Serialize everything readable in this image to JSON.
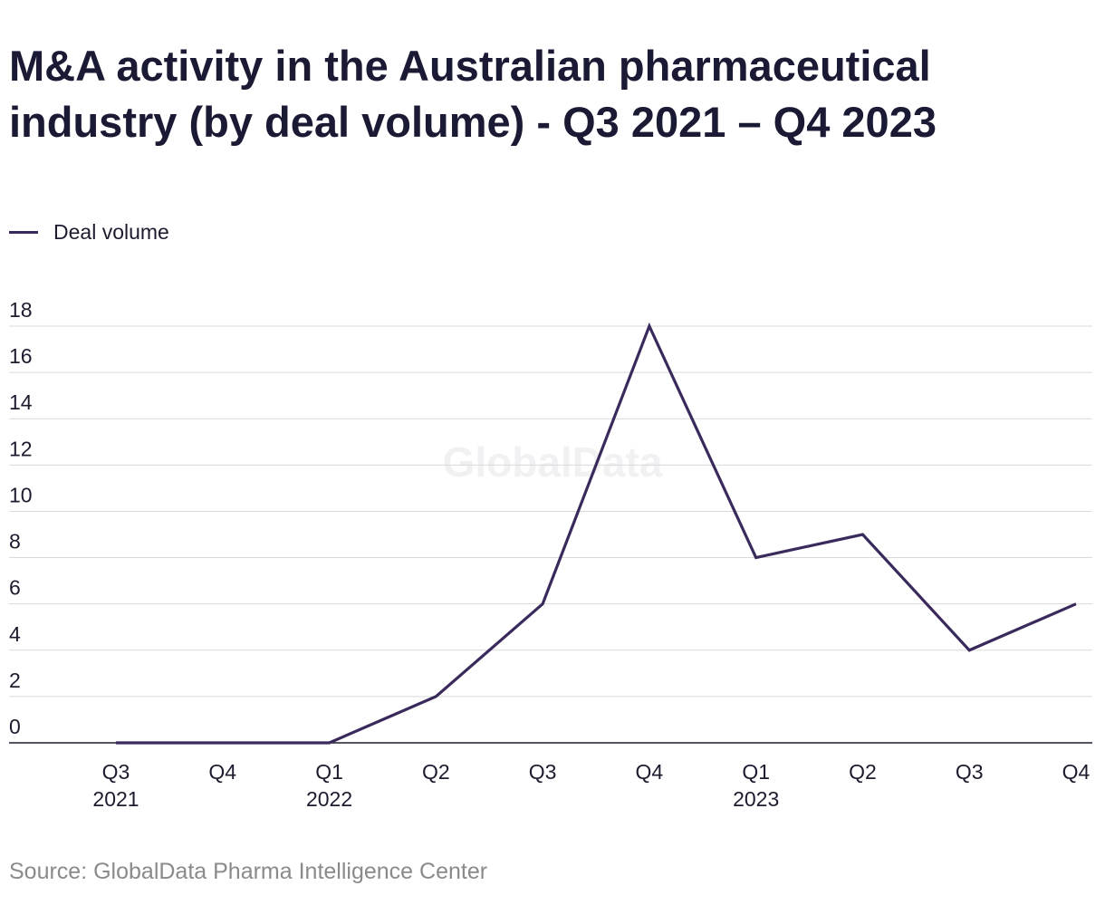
{
  "chart_data": {
    "type": "line",
    "title": "M&A activity in the Australian pharmaceutical industry (by deal volume) - Q3 2021 – Q4 2023",
    "categories": [
      "Q3 2021",
      "Q4 2021",
      "Q1 2022",
      "Q2 2022",
      "Q3 2022",
      "Q4 2022",
      "Q1 2023",
      "Q2 2023",
      "Q3 2023",
      "Q4 2023"
    ],
    "x_tick_labels": [
      {
        "quarter": "Q3",
        "year": "2021"
      },
      {
        "quarter": "Q4",
        "year": ""
      },
      {
        "quarter": "Q1",
        "year": "2022"
      },
      {
        "quarter": "Q2",
        "year": ""
      },
      {
        "quarter": "Q3",
        "year": ""
      },
      {
        "quarter": "Q4",
        "year": ""
      },
      {
        "quarter": "Q1",
        "year": "2023"
      },
      {
        "quarter": "Q2",
        "year": ""
      },
      {
        "quarter": "Q3",
        "year": ""
      },
      {
        "quarter": "Q4",
        "year": ""
      }
    ],
    "series": [
      {
        "name": "Deal volume",
        "values": [
          0,
          0,
          0,
          2,
          6,
          18,
          8,
          9,
          4,
          6
        ],
        "color": "#3a2a5c"
      }
    ],
    "ylim": [
      0,
      18
    ],
    "y_ticks": [
      0,
      2,
      4,
      6,
      8,
      10,
      12,
      14,
      16,
      18
    ],
    "xlabel": "",
    "ylabel": "",
    "grid": true,
    "legend_position": "top-left",
    "watermark": "GlobalData"
  },
  "source": "Source: GlobalData Pharma Intelligence Center"
}
